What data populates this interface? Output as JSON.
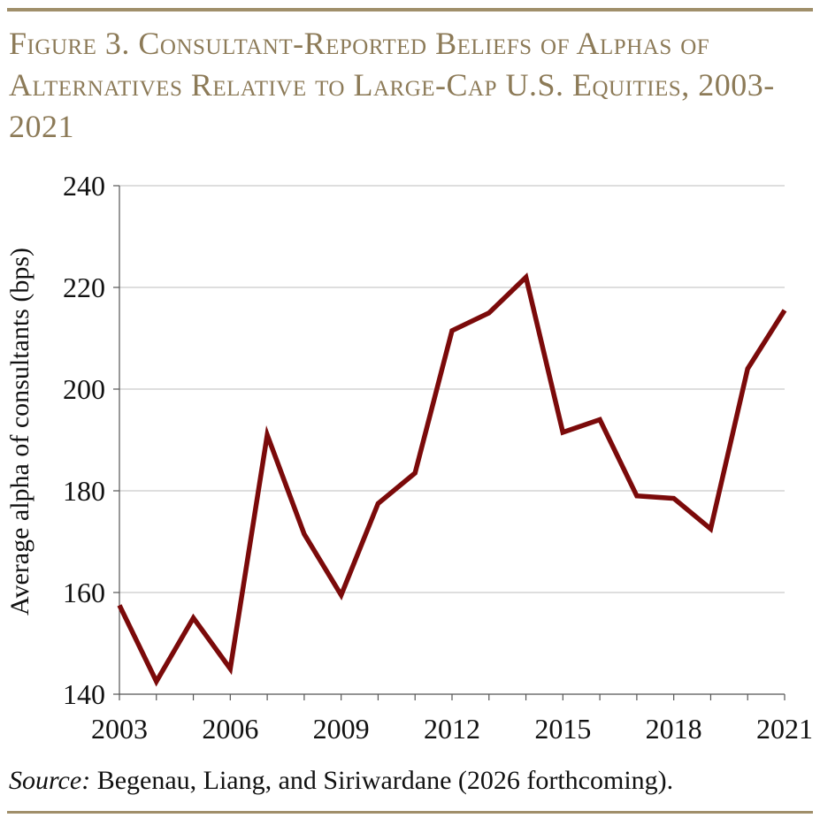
{
  "figure": {
    "title": "Figure 3. Consultant-Reported Beliefs of Alphas of Alternatives Relative to Large-Cap U.S. Equities, 2003-2021",
    "source_label": "Source:",
    "source_text": " Begenau, Liang, and Siriwardane (2026 forthcoming)."
  },
  "colors": {
    "line": "#7b0a0a",
    "grid": "#bdbdbd",
    "axis": "#555555",
    "accent": "#8c7a57"
  },
  "chart_data": {
    "type": "line",
    "title": "",
    "xlabel": "",
    "ylabel": "Average alpha of consultants (bps)",
    "xlim": [
      2003,
      2021
    ],
    "ylim": [
      140,
      240
    ],
    "x_ticks": [
      "2003",
      "2006",
      "2009",
      "2012",
      "2015",
      "2018",
      "2021"
    ],
    "y_ticks": [
      "140",
      "160",
      "180",
      "200",
      "220",
      "240"
    ],
    "grid": "horizontal",
    "x": [
      2003,
      2004,
      2005,
      2006,
      2007,
      2008,
      2009,
      2010,
      2011,
      2012,
      2013,
      2014,
      2015,
      2016,
      2017,
      2018,
      2019,
      2020,
      2021
    ],
    "series": [
      {
        "values": [
          157.5,
          142.5,
          155,
          145,
          191,
          171.5,
          159.5,
          177.5,
          183.5,
          211.5,
          215,
          222,
          191.5,
          194,
          179,
          178.5,
          172.5,
          204,
          215.5
        ]
      }
    ]
  }
}
